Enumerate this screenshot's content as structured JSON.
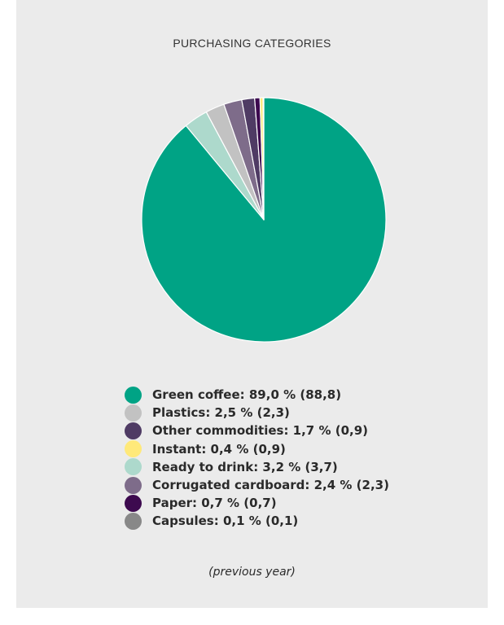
{
  "chart_data": {
    "type": "pie",
    "title": "PURCHASING CATEGORIES",
    "note": "(previous year)",
    "slices": [
      {
        "name": "Green coffee",
        "value": 89.0,
        "previous": 88.8,
        "color": "#00a385",
        "label": "Green coffee: 89,0 % (88,8)"
      },
      {
        "name": "Plastics",
        "value": 2.5,
        "previous": 2.3,
        "color": "#c2c2c2",
        "label": "Plastics: 2,5 % (2,3)"
      },
      {
        "name": "Other commodities",
        "value": 1.7,
        "previous": 0.9,
        "color": "#4f3b64",
        "label": "Other commodities: 1,7 % (0,9)"
      },
      {
        "name": "Instant",
        "value": 0.4,
        "previous": 0.9,
        "color": "#ffe97a",
        "label": "Instant: 0,4 % (0,9)"
      },
      {
        "name": "Ready to drink",
        "value": 3.2,
        "previous": 3.7,
        "color": "#add9cc",
        "label": "Ready to drink: 3,2 % (3,7)"
      },
      {
        "name": "Corrugated cardboard",
        "value": 2.4,
        "previous": 2.3,
        "color": "#7e6c8a",
        "label": "Corrugated cardboard: 2,4 % (2,3)"
      },
      {
        "name": "Paper",
        "value": 0.7,
        "previous": 0.7,
        "color": "#3d0a4f",
        "label": "Paper: 0,7 % (0,7)"
      },
      {
        "name": "Capsules",
        "value": 0.1,
        "previous": 0.1,
        "color": "#888888",
        "label": "Capsules: 0,1 % (0,1)"
      }
    ],
    "pie_order": [
      "Green coffee",
      "Ready to drink",
      "Plastics",
      "Corrugated cardboard",
      "Other commodities",
      "Paper",
      "Instant",
      "Capsules"
    ]
  }
}
